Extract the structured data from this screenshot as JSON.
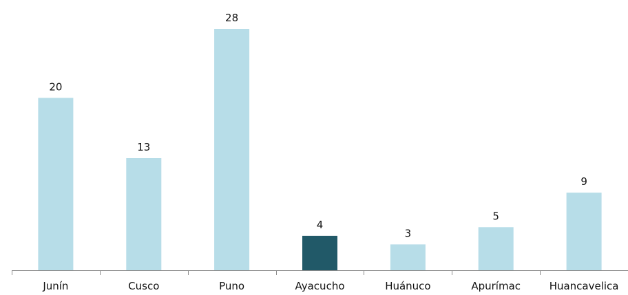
{
  "chart_data": {
    "type": "bar",
    "categories": [
      "Junín",
      "Cusco",
      "Puno",
      "Ayacucho",
      "Huánuco",
      "Apurímac",
      "Huancavelica"
    ],
    "values": [
      20,
      13,
      28,
      4,
      3,
      5,
      9
    ],
    "value_labels": [
      "20",
      "13",
      "28",
      "4",
      "3",
      "5",
      "9"
    ],
    "title": "",
    "xlabel": "",
    "ylabel": "",
    "ylim": [
      0,
      28
    ],
    "grid": false,
    "legend": "none",
    "highlight_category": "Ayacucho",
    "colors": {
      "bar": "#b7dde8",
      "highlight": "#215968",
      "axis": "#8a8a8a"
    }
  }
}
